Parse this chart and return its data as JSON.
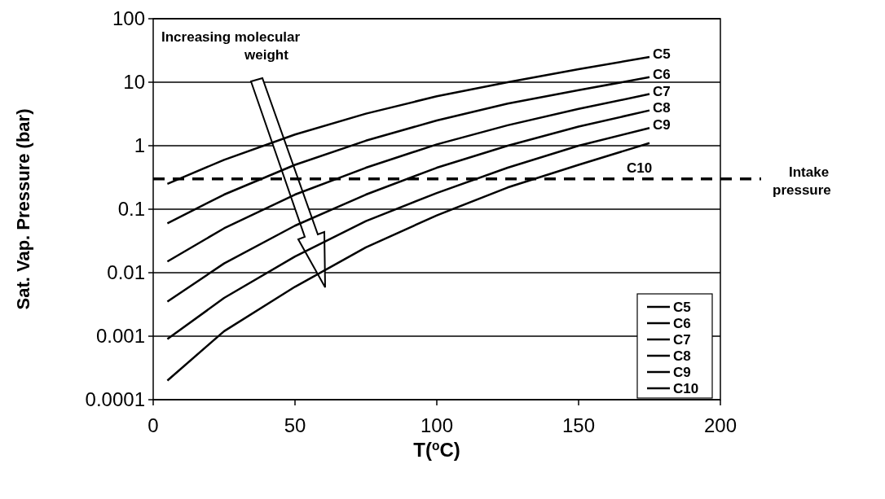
{
  "chart_data": {
    "type": "line",
    "xlabel": "T($^{o}$C)",
    "ylabel": "Sat. Vap. Pressure (bar)",
    "x": [
      5,
      25,
      50,
      75,
      100,
      125,
      150,
      175
    ],
    "series": [
      {
        "name": "C5",
        "color": "#000000",
        "values": [
          0.25,
          0.6,
          1.5,
          3.2,
          6,
          10,
          16,
          25
        ]
      },
      {
        "name": "C6",
        "color": "#000000",
        "values": [
          0.06,
          0.17,
          0.5,
          1.2,
          2.5,
          4.6,
          7.5,
          12
        ]
      },
      {
        "name": "C7",
        "color": "#000000",
        "values": [
          0.015,
          0.05,
          0.17,
          0.45,
          1.05,
          2.1,
          3.8,
          6.5
        ]
      },
      {
        "name": "C8",
        "color": "#000000",
        "values": [
          0.0035,
          0.014,
          0.055,
          0.17,
          0.45,
          1.0,
          2.0,
          3.6
        ]
      },
      {
        "name": "C9",
        "color": "#000000",
        "values": [
          0.0009,
          0.004,
          0.018,
          0.065,
          0.18,
          0.45,
          1.0,
          1.9
        ]
      },
      {
        "name": "C10",
        "color": "#000000",
        "values": [
          0.0002,
          0.0012,
          0.006,
          0.025,
          0.08,
          0.22,
          0.5,
          1.1
        ]
      }
    ],
    "xlim": [
      0,
      200
    ],
    "xticks": [
      0,
      50,
      100,
      150,
      200
    ],
    "ylim": [
      0.0001,
      100
    ],
    "yticks": [
      0.0001,
      0.001,
      0.01,
      0.1,
      1,
      10,
      100
    ],
    "log": "y",
    "grid": "y",
    "legend": "bottom right",
    "marker": "none",
    "line_style": "solid",
    "ref_lines": [
      {
        "axis": "y",
        "value": 0.3,
        "label": "Intake pressure",
        "line_style": "dashed",
        "color": "#000000"
      }
    ],
    "annotations": [
      "Increasing molecular weight"
    ]
  }
}
